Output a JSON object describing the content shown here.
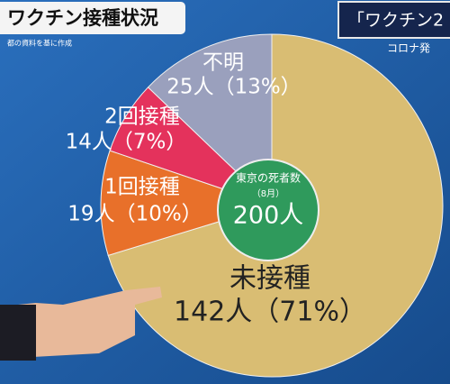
{
  "chart_data": {
    "type": "pie",
    "title": "ワクチン接種状況",
    "note": "都の資料を基に作成",
    "header_right": "「ワクチン2",
    "header_right_sub": "コロナ発",
    "categories": [
      "未接種",
      "1回接種",
      "2回接種",
      "不明"
    ],
    "values": [
      71,
      10,
      7,
      13
    ],
    "value_labels": [
      "142人（71%）",
      "19人（10%）",
      "14人（7%）",
      "25人（13%）"
    ],
    "colors": [
      "#d9bd73",
      "#e8702a",
      "#e4325c",
      "#9aa0bd"
    ],
    "center_text": [
      "東京の死者数",
      "（8月）",
      "200人"
    ],
    "center_color": "#2f9a5c"
  }
}
